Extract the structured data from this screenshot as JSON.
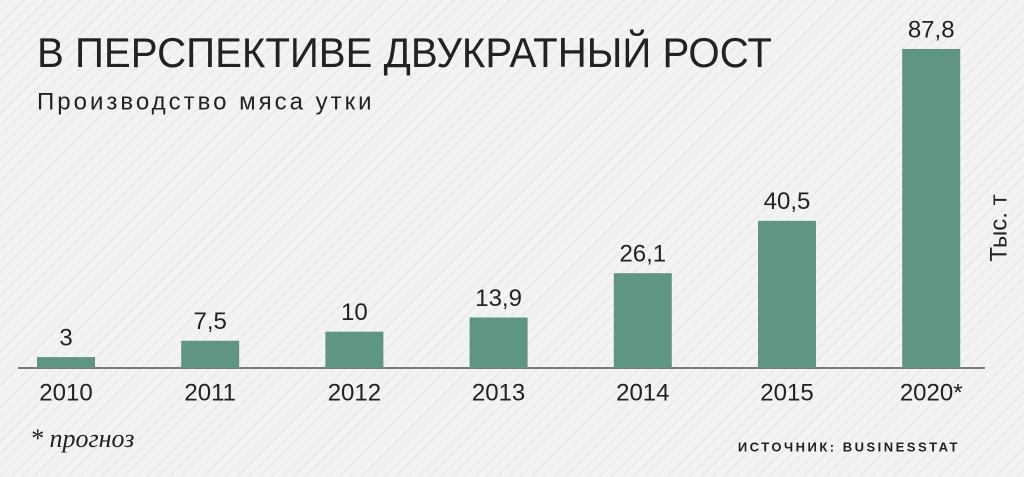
{
  "chart_data": {
    "type": "bar",
    "title": "В ПЕРСПЕКТИВЕ ДВУКРАТНЫЙ РОСТ",
    "subtitle": "Производство мяса утки",
    "y_label": "Тыс. т",
    "categories": [
      "2010",
      "2011",
      "2012",
      "2013",
      "2014",
      "2015",
      "2020*"
    ],
    "values": [
      3,
      7.5,
      10,
      13.9,
      26.1,
      40.5,
      87.8
    ],
    "value_labels": [
      "3",
      "7,5",
      "10",
      "13,9",
      "26,1",
      "40,5",
      "87,8"
    ],
    "color": "#5f9585",
    "ylim": [
      0,
      87.8
    ],
    "footnote": "* прогноз",
    "source": "ИСТОЧНИК: BUSINESSTAT"
  }
}
